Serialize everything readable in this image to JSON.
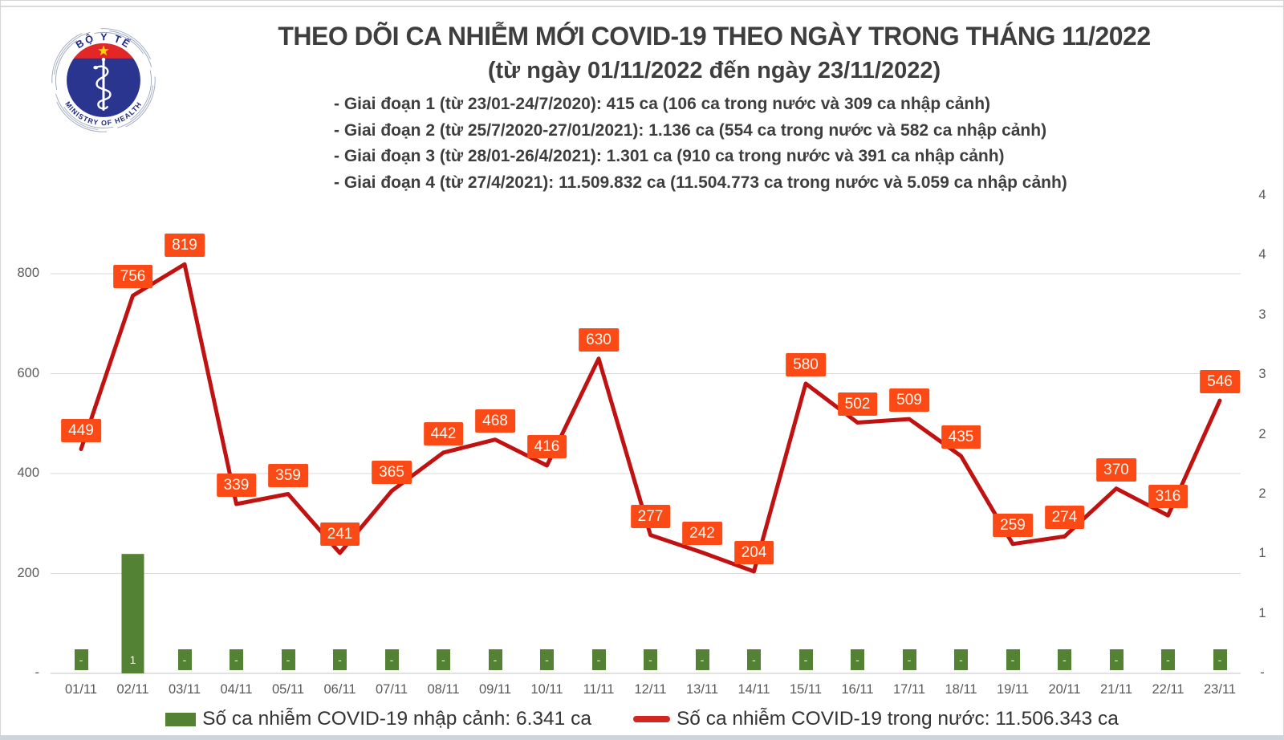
{
  "logo": {
    "top_text": "BỘ Y TẾ",
    "bottom_text": "MINISTRY OF HEALTH"
  },
  "header": {
    "title": "THEO DÕI CA NHIỄM MỚI COVID-19 THEO NGÀY TRONG THÁNG 11/2022",
    "subtitle": "(từ ngày 01/11/2022 đến ngày 23/11/2022)",
    "notes": [
      "- Giai đoạn 1 (từ 23/01-24/7/2020): 415 ca (106 ca trong nước và 309 ca nhập cảnh)",
      "- Giai đoạn 2 (từ 25/7/2020-27/01/2021): 1.136 ca (554 ca trong nước và 582 ca nhập cảnh)",
      "- Giai đoạn 3 (từ 28/01-26/4/2021): 1.301 ca (910 ca trong nước và 391 ca nhập cảnh)",
      "- Giai đoạn 4 (từ 27/4/2021): 11.509.832 ca (11.504.773 ca trong nước và 5.059 ca nhập cảnh)"
    ]
  },
  "chart_data": {
    "type": "line+bar",
    "title": "Theo dõi ca nhiễm mới COVID-19 theo ngày trong tháng 11/2022",
    "categories": [
      "01/11",
      "02/11",
      "03/11",
      "04/11",
      "05/11",
      "06/11",
      "07/11",
      "08/11",
      "09/11",
      "10/11",
      "11/11",
      "12/11",
      "13/11",
      "14/11",
      "15/11",
      "16/11",
      "17/11",
      "18/11",
      "19/11",
      "20/11",
      "21/11",
      "22/11",
      "23/11"
    ],
    "series": [
      {
        "name": "Số ca nhiễm COVID-19 trong nước",
        "type": "line",
        "color": "#c11212",
        "label_bg": "#fb4a16",
        "values": [
          449,
          756,
          819,
          339,
          359,
          241,
          365,
          442,
          468,
          416,
          630,
          277,
          242,
          204,
          580,
          502,
          509,
          435,
          259,
          274,
          370,
          316,
          546
        ]
      },
      {
        "name": "Số ca nhiễm COVID-19 nhập cảnh",
        "type": "bar",
        "color": "#548235",
        "values": [
          0,
          1,
          0,
          0,
          0,
          0,
          0,
          0,
          0,
          0,
          0,
          0,
          0,
          0,
          0,
          0,
          0,
          0,
          0,
          0,
          0,
          0,
          0
        ],
        "labels": [
          "-",
          "1",
          "-",
          "-",
          "-",
          "-",
          "-",
          "-",
          "-",
          "-",
          "-",
          "-",
          "-",
          "-",
          "-",
          "-",
          "-",
          "-",
          "-",
          "-",
          "-",
          "-",
          "-"
        ]
      }
    ],
    "left_axis": {
      "min": 0,
      "tick_values": [
        800,
        600,
        400,
        200,
        0
      ],
      "tick_labels": [
        "800",
        "600",
        "400",
        "200",
        "-"
      ]
    },
    "right_axis": {
      "min": 0,
      "max": 4,
      "step": 0.5,
      "labels_top_to_bottom": [
        "4",
        "4",
        "3",
        "3",
        "2",
        "2",
        "1",
        "1",
        "-"
      ]
    },
    "grid": true,
    "legend_position": "bottom"
  },
  "legend": {
    "import": {
      "label": "Số ca nhiễm COVID-19 nhập cảnh: 6.341 ca",
      "color": "#548235"
    },
    "domestic": {
      "label": "Số ca nhiễm COVID-19 trong nước: 11.506.343 ca",
      "color": "#d22721"
    }
  },
  "colors": {
    "grid": "#d9d9d9",
    "axis_text": "#595959",
    "title_text": "#3e3e3e",
    "logo_navy": "#2a3590",
    "logo_red": "#e32726",
    "star_yellow": "#ffd400"
  }
}
